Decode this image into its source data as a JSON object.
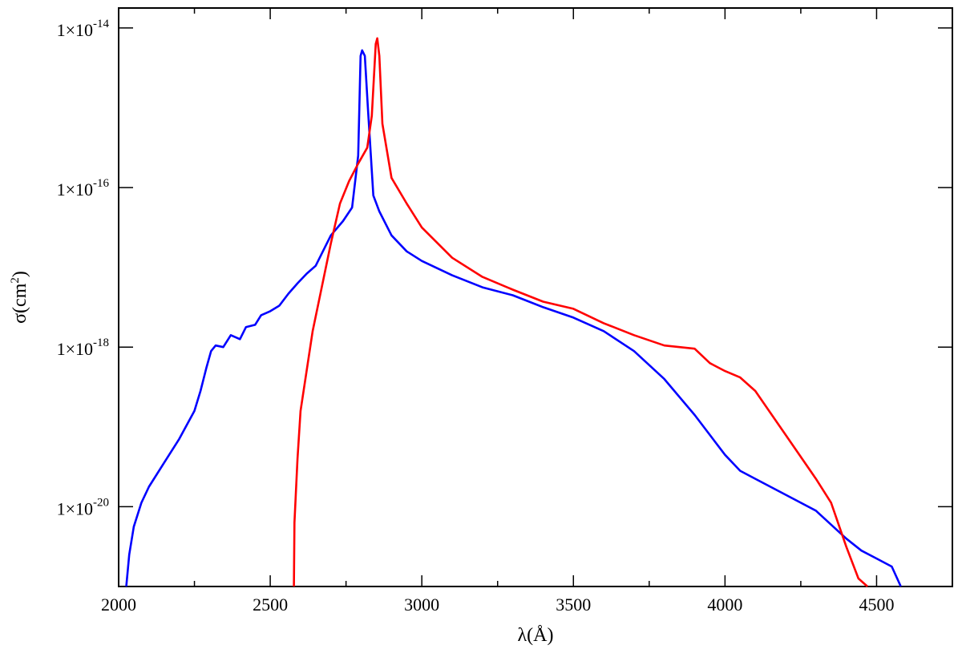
{
  "chart_data": {
    "type": "line",
    "title": "",
    "xlabel": "λ(Å)",
    "ylabel_main": "σ(cm",
    "ylabel_sup": "2",
    "ylabel_close": ")",
    "ylabel": "σ(cm²)",
    "yscale": "log",
    "xlim": [
      2000,
      4750
    ],
    "ylim_log10": [
      -21.0,
      -13.75
    ],
    "x_ticks": [
      2000,
      2500,
      3000,
      3500,
      4000,
      4500
    ],
    "x_tick_labels": [
      "2000",
      "2500",
      "3000",
      "3500",
      "4000",
      "4500"
    ],
    "y_ticks_log10": [
      -14,
      -16,
      -18,
      -20
    ],
    "y_tick_labels": [
      {
        "base": "1×10",
        "exp": "-14"
      },
      {
        "base": "1×10",
        "exp": "-16"
      },
      {
        "base": "1×10",
        "exp": "-18"
      },
      {
        "base": "1×10",
        "exp": "-20"
      }
    ],
    "grid": false,
    "legend": "none",
    "series": [
      {
        "color": "#0000ff",
        "points_log10": [
          [
            2025,
            -21.0
          ],
          [
            2035,
            -20.6
          ],
          [
            2050,
            -20.25
          ],
          [
            2075,
            -19.95
          ],
          [
            2100,
            -19.75
          ],
          [
            2150,
            -19.45
          ],
          [
            2200,
            -19.15
          ],
          [
            2250,
            -18.8
          ],
          [
            2270,
            -18.55
          ],
          [
            2290,
            -18.25
          ],
          [
            2305,
            -18.05
          ],
          [
            2320,
            -17.98
          ],
          [
            2345,
            -18.0
          ],
          [
            2370,
            -17.85
          ],
          [
            2400,
            -17.9
          ],
          [
            2420,
            -17.75
          ],
          [
            2450,
            -17.72
          ],
          [
            2470,
            -17.6
          ],
          [
            2500,
            -17.55
          ],
          [
            2530,
            -17.48
          ],
          [
            2560,
            -17.33
          ],
          [
            2590,
            -17.2
          ],
          [
            2620,
            -17.08
          ],
          [
            2650,
            -16.98
          ],
          [
            2680,
            -16.75
          ],
          [
            2700,
            -16.6
          ],
          [
            2740,
            -16.42
          ],
          [
            2770,
            -16.25
          ],
          [
            2790,
            -15.6
          ],
          [
            2798,
            -14.35
          ],
          [
            2803,
            -14.28
          ],
          [
            2812,
            -14.35
          ],
          [
            2822,
            -15.0
          ],
          [
            2840,
            -16.1
          ],
          [
            2860,
            -16.3
          ],
          [
            2900,
            -16.6
          ],
          [
            2950,
            -16.8
          ],
          [
            3000,
            -16.92
          ],
          [
            3100,
            -17.1
          ],
          [
            3200,
            -17.25
          ],
          [
            3300,
            -17.35
          ],
          [
            3400,
            -17.5
          ],
          [
            3500,
            -17.63
          ],
          [
            3600,
            -17.8
          ],
          [
            3700,
            -18.05
          ],
          [
            3800,
            -18.4
          ],
          [
            3900,
            -18.85
          ],
          [
            4000,
            -19.35
          ],
          [
            4050,
            -19.55
          ],
          [
            4100,
            -19.65
          ],
          [
            4200,
            -19.85
          ],
          [
            4300,
            -20.05
          ],
          [
            4400,
            -20.4
          ],
          [
            4450,
            -20.55
          ],
          [
            4500,
            -20.65
          ],
          [
            4550,
            -20.75
          ],
          [
            4580,
            -21.0
          ]
        ]
      },
      {
        "color": "#ff0000",
        "points_log10": [
          [
            2578,
            -21.0
          ],
          [
            2580,
            -20.2
          ],
          [
            2590,
            -19.4
          ],
          [
            2600,
            -18.8
          ],
          [
            2640,
            -17.8
          ],
          [
            2700,
            -16.7
          ],
          [
            2730,
            -16.2
          ],
          [
            2760,
            -15.92
          ],
          [
            2790,
            -15.7
          ],
          [
            2820,
            -15.5
          ],
          [
            2835,
            -15.1
          ],
          [
            2848,
            -14.2
          ],
          [
            2853,
            -14.13
          ],
          [
            2860,
            -14.35
          ],
          [
            2870,
            -15.2
          ],
          [
            2900,
            -15.88
          ],
          [
            2950,
            -16.2
          ],
          [
            3000,
            -16.5
          ],
          [
            3100,
            -16.88
          ],
          [
            3200,
            -17.12
          ],
          [
            3300,
            -17.28
          ],
          [
            3400,
            -17.43
          ],
          [
            3500,
            -17.52
          ],
          [
            3600,
            -17.7
          ],
          [
            3700,
            -17.85
          ],
          [
            3800,
            -17.98
          ],
          [
            3900,
            -18.02
          ],
          [
            3950,
            -18.2
          ],
          [
            4000,
            -18.3
          ],
          [
            4050,
            -18.38
          ],
          [
            4100,
            -18.55
          ],
          [
            4200,
            -19.1
          ],
          [
            4300,
            -19.65
          ],
          [
            4350,
            -19.95
          ],
          [
            4400,
            -20.5
          ],
          [
            4440,
            -20.9
          ],
          [
            4470,
            -21.0
          ]
        ]
      }
    ]
  }
}
